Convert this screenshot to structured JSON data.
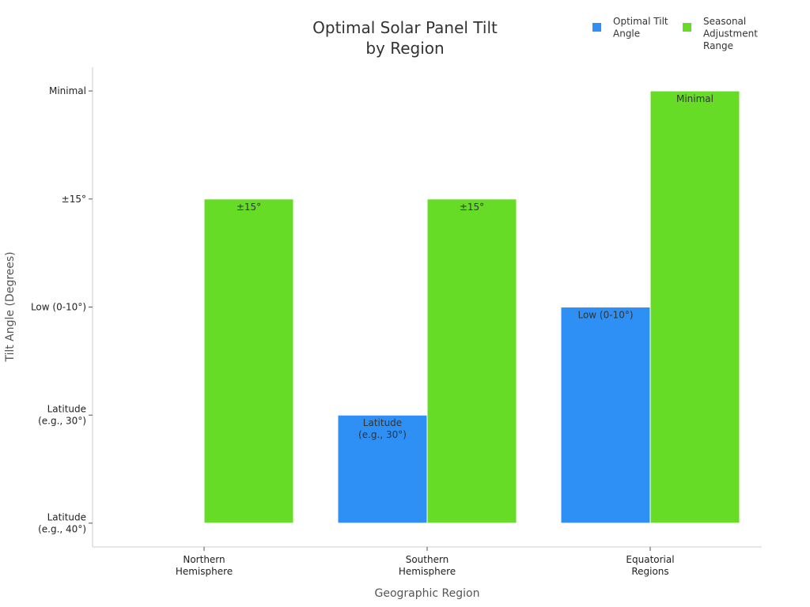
{
  "chart_data": {
    "type": "bar",
    "title": [
      "Optimal Solar Panel Tilt",
      "by Region"
    ],
    "xlabel": "Geographic Region",
    "ylabel": "Tilt Angle (Degrees)",
    "categories": [
      [
        "Northern",
        "Hemisphere"
      ],
      [
        "Southern",
        "Hemisphere"
      ],
      [
        "Equatorial",
        "Regions"
      ]
    ],
    "y_ticks": [
      [
        "Latitude",
        "(e.g., 40°)"
      ],
      [
        "Latitude",
        "(e.g., 30°)"
      ],
      [
        "Low (0-10°)"
      ],
      [
        "±15°"
      ],
      [
        "Minimal"
      ]
    ],
    "series": [
      {
        "name": [
          "Optimal Tilt",
          "Angle"
        ],
        "color": "#2e90f5",
        "values": [
          0,
          1,
          2
        ],
        "labels": [
          [],
          [
            "Latitude",
            "(e.g., 30°)"
          ],
          [
            "Low (0-10°)"
          ]
        ]
      },
      {
        "name": [
          "Seasonal",
          "Adjustment",
          "Range"
        ],
        "color": "#66dc26",
        "values": [
          3,
          3,
          4
        ],
        "labels": [
          [
            "±15°"
          ],
          [
            "±15°"
          ],
          [
            "Minimal"
          ]
        ]
      }
    ],
    "ylim": [
      -0.22,
      4.22
    ],
    "grid": false,
    "legend_position": "top-right"
  }
}
